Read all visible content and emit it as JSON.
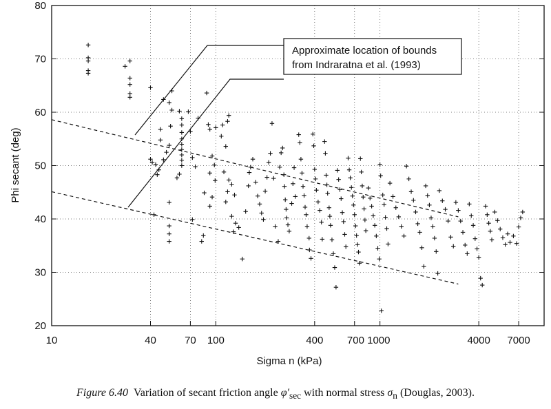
{
  "chart_data": {
    "type": "scatter",
    "xlabel": "Sigma n (kPa)",
    "ylabel": "Phi secant (deg)",
    "x_scale": "log",
    "xlim": [
      10,
      10000
    ],
    "ylim": [
      20,
      80
    ],
    "x_ticks": [
      10,
      40,
      70,
      100,
      400,
      700,
      1000,
      4000,
      7000
    ],
    "x_tick_labels": [
      "10",
      "40",
      "70",
      "100",
      "400",
      "700 1000",
      "",
      "4000",
      "7000"
    ],
    "y_ticks": [
      20,
      30,
      40,
      50,
      60,
      70,
      80
    ],
    "grid": true,
    "marker": "+",
    "bound_lines": [
      {
        "points": [
          [
            10,
            58.6
          ],
          [
            3000,
            40.4
          ]
        ]
      },
      {
        "points": [
          [
            10,
            45.1
          ],
          [
            3000,
            27.8
          ]
        ]
      }
    ],
    "annotation": {
      "lines": [
        "Approximate location of bounds",
        "from Indraratna et al. (1993)"
      ]
    },
    "series": [
      {
        "values": [
          [
            16.7,
            72.6
          ],
          [
            16.7,
            70.2
          ],
          [
            16.7,
            69.6
          ],
          [
            16.7,
            67.8
          ],
          [
            16.7,
            67.3
          ],
          [
            28,
            68.6
          ],
          [
            30,
            69.6
          ],
          [
            30,
            66.4
          ],
          [
            30,
            65.2
          ],
          [
            30,
            63.5
          ],
          [
            30,
            62.8
          ],
          [
            40,
            64.6
          ],
          [
            48,
            62.4
          ],
          [
            52,
            61.8
          ],
          [
            54,
            64
          ],
          [
            54,
            60.4
          ],
          [
            53,
            57.4
          ],
          [
            46,
            56.8
          ],
          [
            46,
            54.8
          ],
          [
            40,
            51.2
          ],
          [
            41,
            50.6
          ],
          [
            43,
            50.2
          ],
          [
            45,
            49.2
          ],
          [
            48,
            51.1
          ],
          [
            50,
            52.5
          ],
          [
            52,
            53.8
          ],
          [
            44,
            48.3
          ],
          [
            52,
            43.1
          ],
          [
            52,
            38.7
          ],
          [
            52,
            37.2
          ],
          [
            52,
            35.8
          ],
          [
            42,
            40.8
          ],
          [
            60,
            60.2
          ],
          [
            62,
            58.8
          ],
          [
            62,
            57.6
          ],
          [
            62,
            56.2
          ],
          [
            62,
            55
          ],
          [
            62,
            54
          ],
          [
            62,
            53
          ],
          [
            62,
            52
          ],
          [
            62,
            51
          ],
          [
            62,
            50
          ],
          [
            68,
            60.1
          ],
          [
            70,
            56.4
          ],
          [
            72,
            51.5
          ],
          [
            75,
            49.8
          ],
          [
            60,
            48.4
          ],
          [
            58,
            47.7
          ],
          [
            72,
            39.9
          ],
          [
            78,
            58.9
          ],
          [
            88,
            63.6
          ],
          [
            90,
            57.7
          ],
          [
            92,
            56.8
          ],
          [
            100,
            57.1
          ],
          [
            95,
            51.8
          ],
          [
            98,
            50.1
          ],
          [
            92,
            48.6
          ],
          [
            99,
            47.2
          ],
          [
            85,
            44.9
          ],
          [
            95,
            44.1
          ],
          [
            92,
            42.4
          ],
          [
            84,
            36.9
          ],
          [
            82,
            35.8
          ],
          [
            110,
            57.6
          ],
          [
            118,
            58.3
          ],
          [
            120,
            59.4
          ],
          [
            115,
            53.6
          ],
          [
            108,
            55.5
          ],
          [
            112,
            48.8
          ],
          [
            120,
            47.3
          ],
          [
            125,
            46.5
          ],
          [
            118,
            45.1
          ],
          [
            130,
            44.5
          ],
          [
            115,
            43.2
          ],
          [
            125,
            40.5
          ],
          [
            132,
            39.2
          ],
          [
            138,
            38.4
          ],
          [
            128,
            37.6
          ],
          [
            145,
            32.5
          ],
          [
            152,
            41.4
          ],
          [
            158,
            46.2
          ],
          [
            160,
            48.7
          ],
          [
            163,
            49.7
          ],
          [
            168,
            51.2
          ],
          [
            175,
            46.9
          ],
          [
            180,
            44.3
          ],
          [
            185,
            42.8
          ],
          [
            190,
            41.1
          ],
          [
            195,
            39.9
          ],
          [
            200,
            45.2
          ],
          [
            205,
            47.8
          ],
          [
            210,
            50.6
          ],
          [
            215,
            52.3
          ],
          [
            220,
            57.9
          ],
          [
            225,
            47.6
          ],
          [
            230,
            38.6
          ],
          [
            240,
            35.8
          ],
          [
            245,
            49.7
          ],
          [
            250,
            52.4
          ],
          [
            255,
            53.3
          ],
          [
            260,
            48.3
          ],
          [
            262,
            46.1
          ],
          [
            265,
            43.6
          ],
          [
            268,
            41.8
          ],
          [
            270,
            40.2
          ],
          [
            275,
            38.9
          ],
          [
            280,
            37.7
          ],
          [
            290,
            42.9
          ],
          [
            295,
            46.6
          ],
          [
            300,
            49.6
          ],
          [
            305,
            44.2
          ],
          [
            320,
            55.8
          ],
          [
            325,
            54.3
          ],
          [
            330,
            51.2
          ],
          [
            335,
            48.6
          ],
          [
            340,
            46.1
          ],
          [
            345,
            44.4
          ],
          [
            350,
            42.2
          ],
          [
            355,
            40.8
          ],
          [
            360,
            38.6
          ],
          [
            370,
            36.4
          ],
          [
            372,
            34.2
          ],
          [
            380,
            32.6
          ],
          [
            390,
            55.9
          ],
          [
            395,
            53.7
          ],
          [
            400,
            49.3
          ],
          [
            405,
            47.5
          ],
          [
            410,
            45.4
          ],
          [
            420,
            43.2
          ],
          [
            430,
            41.6
          ],
          [
            440,
            39.4
          ],
          [
            445,
            36.2
          ],
          [
            460,
            54.5
          ],
          [
            465,
            52.3
          ],
          [
            470,
            48.2
          ],
          [
            475,
            46.4
          ],
          [
            480,
            44.8
          ],
          [
            490,
            42.1
          ],
          [
            495,
            40.5
          ],
          [
            500,
            38.8
          ],
          [
            510,
            36.1
          ],
          [
            520,
            33.5
          ],
          [
            530,
            30.9
          ],
          [
            540,
            27.2
          ],
          [
            550,
            49.1
          ],
          [
            560,
            47.4
          ],
          [
            570,
            45.5
          ],
          [
            580,
            43.8
          ],
          [
            590,
            41.2
          ],
          [
            600,
            39.5
          ],
          [
            610,
            37.1
          ],
          [
            620,
            34.8
          ],
          [
            640,
            51.4
          ],
          [
            650,
            49.2
          ],
          [
            660,
            47.7
          ],
          [
            670,
            45.9
          ],
          [
            680,
            44.3
          ],
          [
            690,
            42.6
          ],
          [
            700,
            40.8
          ],
          [
            710,
            38.7
          ],
          [
            720,
            36.9
          ],
          [
            730,
            35.2
          ],
          [
            740,
            33.8
          ],
          [
            750,
            31.7
          ],
          [
            760,
            51.3
          ],
          [
            770,
            48.8
          ],
          [
            780,
            46.2
          ],
          [
            790,
            44.1
          ],
          [
            800,
            41.9
          ],
          [
            810,
            39.8
          ],
          [
            820,
            37.8
          ],
          [
            850,
            45.8
          ],
          [
            870,
            43.9
          ],
          [
            890,
            42.4
          ],
          [
            910,
            40.6
          ],
          [
            930,
            38.8
          ],
          [
            950,
            36.8
          ],
          [
            970,
            34.5
          ],
          [
            990,
            32.5
          ],
          [
            1000,
            50.2
          ],
          [
            1010,
            48.1
          ],
          [
            1020,
            22.8
          ],
          [
            1040,
            44.5
          ],
          [
            1060,
            42.7
          ],
          [
            1080,
            40.3
          ],
          [
            1100,
            38.2
          ],
          [
            1120,
            35.3
          ],
          [
            1150,
            46.7
          ],
          [
            1200,
            44.2
          ],
          [
            1250,
            42.1
          ],
          [
            1300,
            40.4
          ],
          [
            1350,
            38.6
          ],
          [
            1400,
            36.8
          ],
          [
            1450,
            49.9
          ],
          [
            1500,
            47.5
          ],
          [
            1550,
            45.1
          ],
          [
            1600,
            43.5
          ],
          [
            1650,
            41.3
          ],
          [
            1700,
            39.1
          ],
          [
            1750,
            37.5
          ],
          [
            1800,
            34.6
          ],
          [
            1850,
            31.1
          ],
          [
            1900,
            46.2
          ],
          [
            1950,
            44.4
          ],
          [
            2000,
            42.6
          ],
          [
            2050,
            40.2
          ],
          [
            2100,
            38.6
          ],
          [
            2150,
            36.4
          ],
          [
            2200,
            33.9
          ],
          [
            2250,
            29.8
          ],
          [
            2300,
            45.3
          ],
          [
            2400,
            43.4
          ],
          [
            2500,
            41.8
          ],
          [
            2600,
            39.6
          ],
          [
            2700,
            36.6
          ],
          [
            2800,
            34.9
          ],
          [
            2900,
            43.1
          ],
          [
            3000,
            41.6
          ],
          [
            3100,
            39.6
          ],
          [
            3200,
            37.5
          ],
          [
            3300,
            35.1
          ],
          [
            3400,
            33.5
          ],
          [
            3500,
            42.8
          ],
          [
            3600,
            40.6
          ],
          [
            3700,
            38.8
          ],
          [
            3800,
            36.3
          ],
          [
            3900,
            34.4
          ],
          [
            4000,
            32.8
          ],
          [
            4100,
            28.9
          ],
          [
            4200,
            27.6
          ],
          [
            4400,
            42.4
          ],
          [
            4500,
            40.8
          ],
          [
            4600,
            39.2
          ],
          [
            4700,
            37.7
          ],
          [
            4800,
            36.1
          ],
          [
            5000,
            41.3
          ],
          [
            5200,
            39.7
          ],
          [
            5400,
            38.1
          ],
          [
            5600,
            36.5
          ],
          [
            5800,
            35.2
          ],
          [
            6000,
            37.2
          ],
          [
            6200,
            35.6
          ],
          [
            6500,
            36.8
          ],
          [
            6800,
            35.4
          ],
          [
            7000,
            38.5
          ],
          [
            7200,
            40.2
          ],
          [
            7400,
            41.3
          ]
        ]
      }
    ]
  },
  "caption": {
    "figure_label": "Figure 6.40",
    "text_before": "Variation of secant friction angle ",
    "phi_symbol": "φ′",
    "phi_subscript": "sec",
    "text_middle": " with normal stress ",
    "sigma_symbol": "σ",
    "sigma_subscript": "n",
    "text_after": " (Douglas, 2003)."
  }
}
